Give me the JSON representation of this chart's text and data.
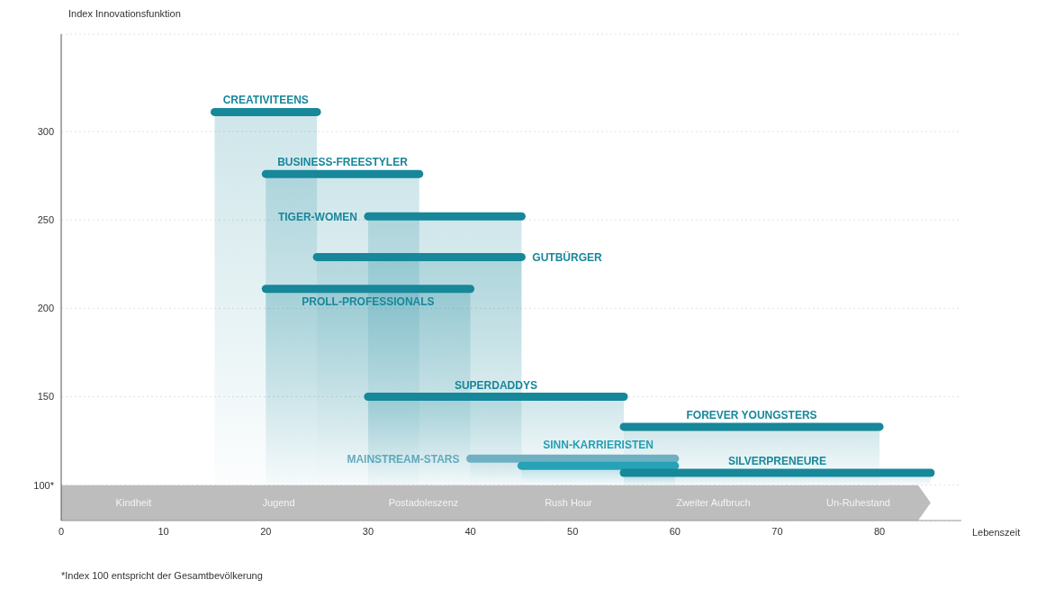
{
  "chart_data": {
    "type": "area",
    "xlabel": "Lebenszeit",
    "ylabel": "Index Innovationsfunktion",
    "xlim": [
      0,
      88
    ],
    "xticks": [
      0,
      10,
      20,
      30,
      40,
      50,
      60,
      70,
      80
    ],
    "ylim": [
      80,
      355
    ],
    "yticks": [
      {
        "value": 100,
        "label": "100*"
      },
      150,
      200,
      250,
      300
    ],
    "grid": "y",
    "series": [
      {
        "name": "CREATIVITEENS",
        "color": "#17879a",
        "x": [
          15,
          25
        ],
        "values": [
          311,
          311
        ]
      },
      {
        "name": "BUSINESS-FREESTYLER",
        "color": "#17879a",
        "x": [
          20,
          35
        ],
        "values": [
          276,
          276
        ]
      },
      {
        "name": "TIGER-WOMEN",
        "color": "#17879a",
        "x": [
          30,
          45
        ],
        "values": [
          252,
          252
        ]
      },
      {
        "name": "GUTBÜRGER",
        "color": "#17879a",
        "x": [
          25,
          45
        ],
        "values": [
          229,
          229
        ]
      },
      {
        "name": "PROLL-PROFESSIONALS",
        "color": "#17879a",
        "x": [
          20,
          40
        ],
        "values": [
          211,
          211
        ]
      },
      {
        "name": "SUPERDADDYS",
        "color": "#17879a",
        "x": [
          30,
          55
        ],
        "values": [
          150,
          150
        ]
      },
      {
        "name": "FOREVER YOUNGSTERS",
        "color": "#17879a",
        "x": [
          55,
          80
        ],
        "values": [
          133,
          133
        ]
      },
      {
        "name": "MAINSTREAM-STARS",
        "color": "#6fb0c2",
        "x": [
          40,
          60
        ],
        "values": [
          115,
          115
        ]
      },
      {
        "name": "SINN-KARRIERISTEN",
        "color": "#27a2b6",
        "x": [
          45,
          60
        ],
        "values": [
          111,
          111
        ]
      },
      {
        "name": "SILVERPRENEURE",
        "color": "#17879a",
        "x": [
          55,
          85
        ],
        "values": [
          107,
          107
        ]
      }
    ],
    "annotations": [
      "Kindheit",
      "Jugend",
      "Postadoleszenz",
      "Rush Hour",
      "Zweiter Aufbruch",
      "Un-Ruhestand",
      "*Index 100 entspricht der Gesamtbevölkerung"
    ]
  }
}
